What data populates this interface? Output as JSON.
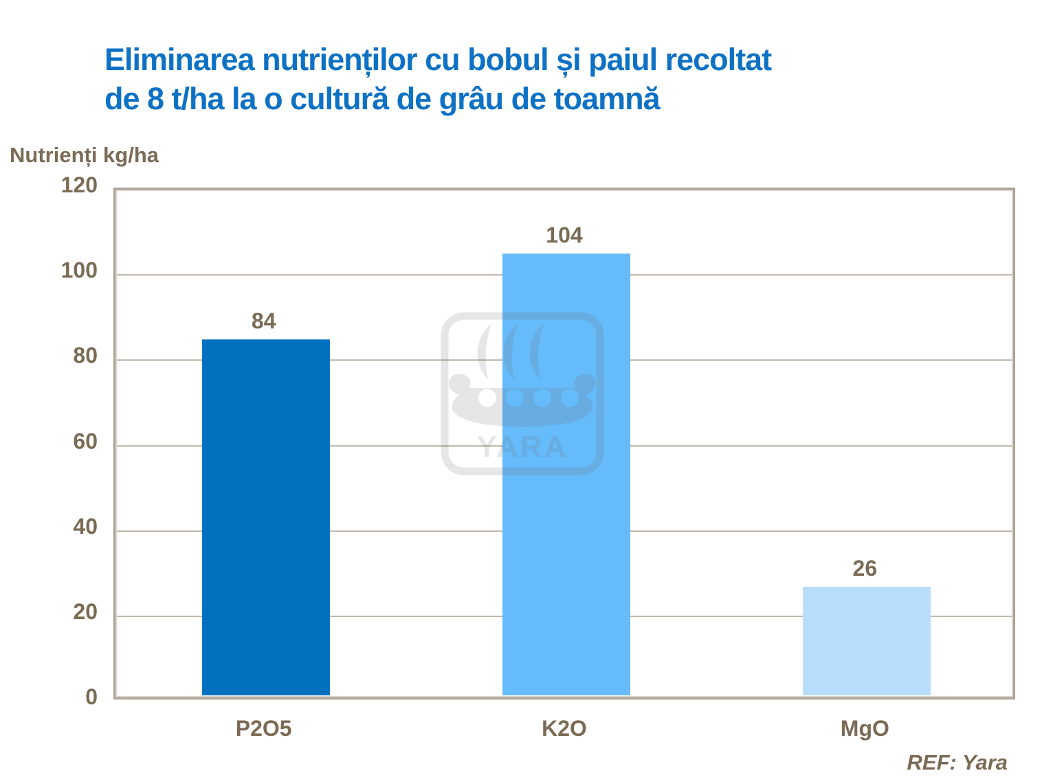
{
  "header": {
    "title_line1": "Eliminarea nutrienților cu bobul și paiul recoltat",
    "title_line2": "de 8 t/ha la o cultură de grâu de toamnă"
  },
  "y_axis_title": "Nutrienți kg/ha",
  "footer": {
    "source": "REF: Yara"
  },
  "watermark": {
    "name": "yara-viking-ship-logo",
    "text": "YARA"
  },
  "colors": {
    "title_blue": "#0d71c4",
    "text_brown": "#7b6b55",
    "gridline": "#c2b8ac",
    "plot_border_outer": "#aba295",
    "plot_border_inner": "#d9d3ca",
    "background": "#ffffff"
  },
  "chart_data": {
    "type": "bar",
    "title": "Eliminarea nutrienților cu bobul și paiul recoltat de 8 t/ha la o cultură de grâu de toamnă",
    "ylabel": "Nutrienți kg/ha",
    "categories": [
      "P2O5",
      "K2O",
      "MgO"
    ],
    "values": [
      84,
      104,
      26
    ],
    "bar_colors": [
      "#0070bf",
      "#66bbfa",
      "#b9defb"
    ],
    "ylim": [
      0,
      120
    ],
    "yticks": [
      0,
      20,
      40,
      60,
      80,
      100,
      120
    ],
    "grid": "horizontal",
    "legend": "none",
    "source": "REF: Yara"
  }
}
